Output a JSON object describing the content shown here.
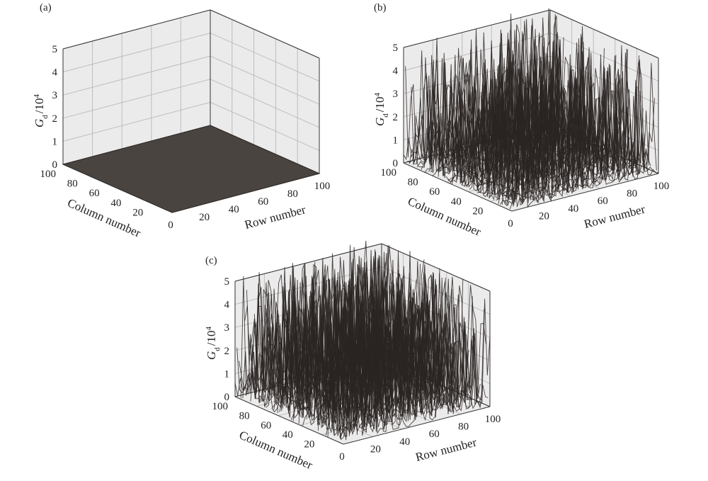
{
  "chart_data": [
    {
      "type": "surface",
      "panel_label": "(a)",
      "zlabel": "G",
      "zlabel_sub": "d",
      "zlabel_unit": "/10",
      "zlabel_exp": "4",
      "xlabel": "Row number",
      "ylabel": "Column number",
      "xticks": [
        "0",
        "20",
        "40",
        "60",
        "80",
        "100"
      ],
      "yticks": [
        "20",
        "40",
        "60",
        "80",
        "100"
      ],
      "zticks": [
        "0",
        "1",
        "2",
        "3",
        "4",
        "5"
      ],
      "xlim": [
        0,
        100
      ],
      "ylim": [
        0,
        100
      ],
      "zlim": [
        0,
        5
      ],
      "grid": true,
      "surface": "flat",
      "z_value": 0,
      "surface_color": "#4a4440"
    },
    {
      "type": "surface",
      "panel_label": "(b)",
      "zlabel": "G",
      "zlabel_sub": "d",
      "zlabel_unit": "/10",
      "zlabel_exp": "4",
      "xlabel": "Row number",
      "ylabel": "Column number",
      "xticks": [
        "0",
        "20",
        "40",
        "60",
        "80",
        "100"
      ],
      "yticks": [
        "20",
        "40",
        "60",
        "80",
        "100"
      ],
      "zticks": [
        "0",
        "1",
        "2",
        "3",
        "4",
        "5"
      ],
      "xlim": [
        0,
        100
      ],
      "ylim": [
        0,
        100
      ],
      "zlim": [
        0,
        5
      ],
      "grid": true,
      "surface": "random-spikes",
      "z_max": 5.2,
      "density": 0.55,
      "seed": 7,
      "line_color": "#2a2522"
    },
    {
      "type": "surface",
      "panel_label": "(c)",
      "zlabel": "G",
      "zlabel_sub": "d",
      "zlabel_unit": "/10",
      "zlabel_exp": "4",
      "xlabel": "Row number",
      "ylabel": "Column number",
      "xticks": [
        "0",
        "20",
        "40",
        "60",
        "80",
        "100"
      ],
      "yticks": [
        "20",
        "40",
        "60",
        "80",
        "100"
      ],
      "zticks": [
        "0",
        "1",
        "2",
        "3",
        "4",
        "5"
      ],
      "xlim": [
        0,
        100
      ],
      "ylim": [
        0,
        100
      ],
      "zlim": [
        0,
        5
      ],
      "grid": true,
      "surface": "random-spikes",
      "z_max": 5.4,
      "density": 0.85,
      "seed": 13,
      "line_color": "#2a2522"
    }
  ]
}
